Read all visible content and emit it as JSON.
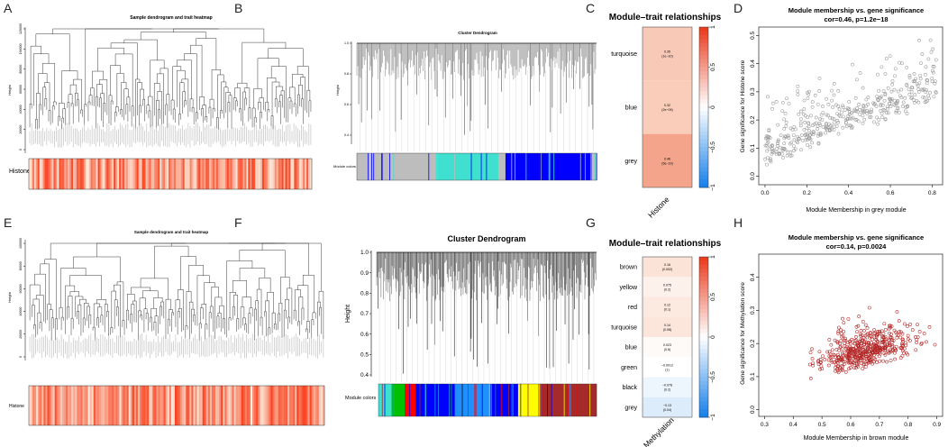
{
  "panels": {
    "A": {
      "letter": "A",
      "title": "Sample dendrogram and trait heatmap",
      "ylabel": "Height",
      "yticks": [
        "0",
        "20000",
        "40000",
        "60000",
        "80000",
        "100000",
        "120000"
      ],
      "trait": "Histone"
    },
    "B": {
      "letter": "B",
      "title": "Cluster Dendrogram",
      "ylabel": "Height",
      "yticks": [
        "0.4",
        "0.6",
        "0.8",
        "1.0"
      ],
      "colors_label": "Module colors"
    },
    "C": {
      "letter": "C",
      "title": "Module–trait relationships",
      "xlabel": "Histone",
      "rows": [
        {
          "name": "turquoise",
          "value": "0.35",
          "p": "(1e−10)",
          "color": "#f8c9b6"
        },
        {
          "name": "blue",
          "value": "0.32",
          "p": "(2e−09)",
          "color": "#f9cdb9"
        },
        {
          "name": "grey",
          "value": "0.46",
          "p": "(5e−19)",
          "color": "#f3a48a"
        }
      ],
      "scale_ticks": [
        "1",
        "0.5",
        "0",
        "−0.5",
        "−1"
      ]
    },
    "D": {
      "letter": "D",
      "title": "Module membership vs. gene significance",
      "subtitle": "cor=0.46, p=1.2e−18",
      "xlabel": "Module Membership in grey module",
      "ylabel": "Gene significance for Histone score",
      "xticks": [
        "0.0",
        "0.2",
        "0.4",
        "0.6",
        "0.8"
      ],
      "yticks": [
        "0.0",
        "0.1",
        "0.2",
        "0.3",
        "0.4",
        "0.5"
      ]
    },
    "E": {
      "letter": "E",
      "title": "Sample dendrogram and trait heatmap",
      "ylabel": "Height",
      "yticks": [
        "0",
        "20000",
        "40000",
        "60000",
        "80000",
        "100000"
      ],
      "trait": "Histone"
    },
    "F": {
      "letter": "F",
      "title": "Cluster Dendrogram",
      "ylabel": "Height",
      "yticks": [
        "0.4",
        "0.5",
        "0.6",
        "0.7",
        "0.8",
        "0.9",
        "1.0"
      ],
      "colors_label": "Module colors"
    },
    "G": {
      "letter": "G",
      "title": "Module–trait relationships",
      "xlabel": "Methylation",
      "rows": [
        {
          "name": "brown",
          "value": "0.16",
          "p": "(0.002)",
          "color": "#fbe3d8"
        },
        {
          "name": "yellow",
          "value": "0.075",
          "p": "(0.2)",
          "color": "#fdf1ec"
        },
        {
          "name": "red",
          "value": "0.12",
          "p": "(0.1)",
          "color": "#fce9e0"
        },
        {
          "name": "turquoise",
          "value": "0.14",
          "p": "(0.08)",
          "color": "#fce6dc"
        },
        {
          "name": "blue",
          "value": "0.023",
          "p": "(0.6)",
          "color": "#fefaf8"
        },
        {
          "name": "green",
          "value": "−0.0012",
          "p": "(1)",
          "color": "#ffffff"
        },
        {
          "name": "black",
          "value": "−0.078",
          "p": "(0.2)",
          "color": "#eef6fd"
        },
        {
          "name": "grey",
          "value": "−0.13",
          "p": "(0.04)",
          "color": "#dcecfa"
        }
      ],
      "scale_ticks": [
        "1",
        "0.5",
        "0",
        "−0.5",
        "−1"
      ]
    },
    "H": {
      "letter": "H",
      "title": "Module membership vs. gene significance",
      "subtitle": "cor=0.14, p=0.0024",
      "xlabel": "Module Membership in brown module",
      "ylabel": "Gene significance for Methylation score",
      "xticks": [
        "0.3",
        "0.4",
        "0.5",
        "0.6",
        "0.7",
        "0.8",
        "0.9"
      ],
      "yticks": [
        "0.0",
        "0.1",
        "0.2",
        "0.3",
        "0.4"
      ]
    }
  },
  "chart_data": [
    {
      "type": "heatmap",
      "title": "Module–trait relationships",
      "xlabel": "Histone",
      "rows": [
        "turquoise",
        "blue",
        "grey"
      ],
      "values": [
        0.35,
        0.32,
        0.46
      ],
      "scale": [
        -1,
        1
      ]
    },
    {
      "type": "scatter",
      "title": "Module membership vs. gene significance",
      "subtitle": "cor=0.46, p=1.2e−18",
      "xlabel": "Module Membership in grey module",
      "ylabel": "Gene significance for Histone score",
      "xlim": [
        -0.03,
        0.85
      ],
      "ylim": [
        -0.03,
        0.53
      ],
      "color": "#999999",
      "n_points": 420
    },
    {
      "type": "heatmap",
      "title": "Module–trait relationships",
      "xlabel": "Methylation",
      "rows": [
        "brown",
        "yellow",
        "red",
        "turquoise",
        "blue",
        "green",
        "black",
        "grey"
      ],
      "values": [
        0.16,
        0.075,
        0.12,
        0.14,
        0.023,
        -0.0012,
        -0.078,
        -0.13
      ],
      "scale": [
        -1,
        1
      ]
    },
    {
      "type": "scatter",
      "title": "Module membership vs. gene significance",
      "subtitle": "cor=0.14, p=0.0024",
      "xlabel": "Module Membership in brown module",
      "ylabel": "Gene significance for Methylation score",
      "xlim": [
        0.28,
        0.92
      ],
      "ylim": [
        -0.02,
        0.47
      ],
      "color": "#b22222",
      "n_points": 480
    }
  ],
  "module_colors": {
    "B": [
      "#bdbdbd",
      "#40e0d0",
      "#0000ff",
      "#40e0d0",
      "#bdbdbd",
      "#0000ff"
    ],
    "F": [
      "#40e0d0",
      "#2e8b57",
      "#ff0000",
      "#00c000",
      "#0000ff",
      "#1e90ff",
      "#ffff00",
      "#a52a2a"
    ]
  }
}
